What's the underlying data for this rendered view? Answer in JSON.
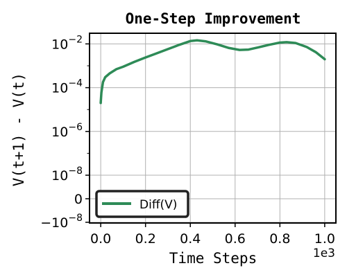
{
  "chart_data": {
    "type": "line",
    "title": "One-Step Improvement",
    "xlabel": "Time Steps",
    "ylabel": "V(t+1) - V(t)",
    "x_offset_label": "1e3",
    "yscale": "symlog",
    "symlog_linthresh": 1e-08,
    "xlim": [
      -0.05,
      1.05
    ],
    "x_ticks": [
      {
        "value": 0.0,
        "label": "0.0"
      },
      {
        "value": 0.2,
        "label": "0.2"
      },
      {
        "value": 0.4,
        "label": "0.4"
      },
      {
        "value": 0.6,
        "label": "0.6"
      },
      {
        "value": 0.8,
        "label": "0.8"
      },
      {
        "value": 1.0,
        "label": "1.0"
      }
    ],
    "y_ticks": [
      {
        "value": 0.01,
        "base": "10",
        "exp": "−2",
        "sign": ""
      },
      {
        "value": 0.0001,
        "base": "10",
        "exp": "−4",
        "sign": ""
      },
      {
        "value": 1e-06,
        "base": "10",
        "exp": "−6",
        "sign": ""
      },
      {
        "value": 1e-08,
        "base": "10",
        "exp": "−8",
        "sign": ""
      },
      {
        "value": 0,
        "base": "0",
        "exp": "",
        "sign": ""
      },
      {
        "value": -1e-08,
        "base": "10",
        "exp": "−8",
        "sign": "−"
      }
    ],
    "grid": true,
    "legend": {
      "placement": "lower-left",
      "entries": [
        "Diff(V)"
      ]
    },
    "series": [
      {
        "name": "Diff(V)",
        "color": "#2e8b57",
        "x": [
          0.0,
          0.003,
          0.01,
          0.02,
          0.04,
          0.07,
          0.1,
          0.15,
          0.2,
          0.25,
          0.3,
          0.35,
          0.4,
          0.43,
          0.47,
          0.52,
          0.57,
          0.62,
          0.66,
          0.7,
          0.75,
          0.8,
          0.83,
          0.87,
          0.92,
          0.96,
          1.0
        ],
        "y": [
          2e-05,
          6e-05,
          0.00018,
          0.0003,
          0.00045,
          0.0007,
          0.0009,
          0.0015,
          0.0024,
          0.0037,
          0.0058,
          0.009,
          0.0135,
          0.0145,
          0.013,
          0.0095,
          0.0066,
          0.0053,
          0.0055,
          0.0068,
          0.009,
          0.0115,
          0.012,
          0.011,
          0.0072,
          0.0042,
          0.002
        ]
      }
    ]
  }
}
